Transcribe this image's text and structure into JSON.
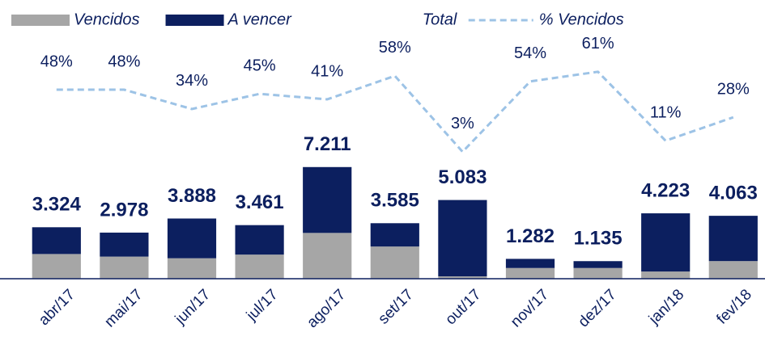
{
  "chart_data": {
    "type": "bar",
    "categories": [
      "abr/17",
      "mai/17",
      "jun/17",
      "jul/17",
      "ago/17",
      "set/17",
      "out/17",
      "nov/17",
      "dez/17",
      "jan/18",
      "fev/18"
    ],
    "series": [
      {
        "name": "Vencidos",
        "type": "bar",
        "color": "#a6a6a6",
        "values": [
          1.596,
          1.429,
          1.322,
          1.557,
          2.957,
          2.079,
          0.152,
          0.692,
          0.692,
          0.465,
          1.138
        ]
      },
      {
        "name": "A vencer",
        "type": "bar",
        "color": "#0c1f5f",
        "values": [
          1.728,
          1.549,
          2.566,
          1.904,
          4.254,
          1.506,
          4.931,
          0.59,
          0.443,
          3.758,
          2.925
        ]
      },
      {
        "name": "Total",
        "type": "label",
        "color": "#0c1f5f",
        "values": [
          3.324,
          2.978,
          3.888,
          3.461,
          7.211,
          3.585,
          5.083,
          1.282,
          1.135,
          4.223,
          4.063
        ]
      },
      {
        "name": "% Vencidos",
        "type": "line",
        "axis": "y2",
        "color": "#9dc3e6",
        "dashed": true,
        "values": [
          48,
          48,
          34,
          45,
          41,
          58,
          3,
          54,
          61,
          11,
          28
        ],
        "value_labels": [
          "48%",
          "48%",
          "34%",
          "45%",
          "41%",
          "58%",
          "3%",
          "54%",
          "61%",
          "11%",
          "28%"
        ]
      }
    ],
    "ylim": [
      0,
      18
    ],
    "y2lim": [
      -89,
      113
    ],
    "legend": "top"
  }
}
